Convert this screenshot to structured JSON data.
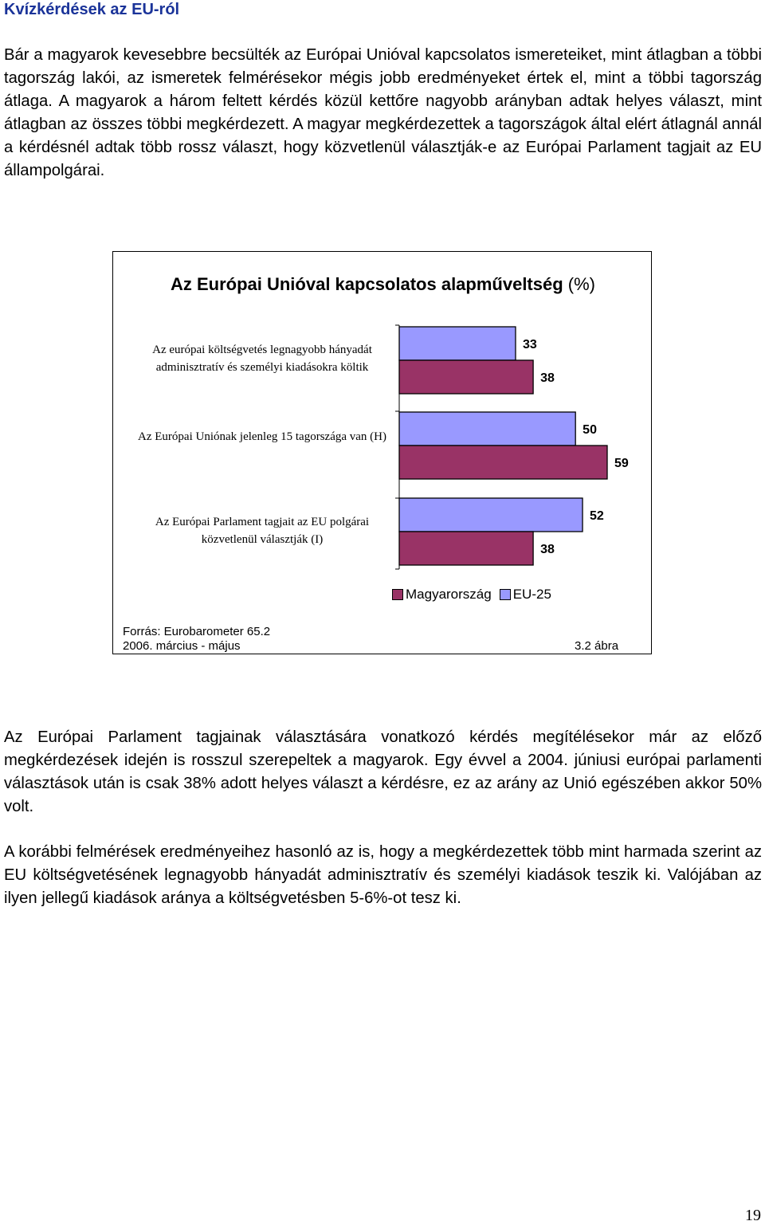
{
  "heading": "Kvízkérdések az EU-ról",
  "paragraphs": [
    "Bár a magyarok kevesebbre becsülték az Európai Unióval kapcsolatos ismereteiket, mint átlagban a többi tagország lakói, az ismeretek felmérésekor mégis jobb eredményeket értek el, mint a többi tagország átlaga. A magyarok a három feltett kérdés közül kettőre nagyobb arányban adtak helyes választ, mint átlagban az összes többi megkérdezett. A magyar megkérdezettek a tagországok által elért átlagnál annál a kérdésnél adtak több rossz választ, hogy közvetlenül választják-e az Európai Parlament tagjait az EU állampolgárai.",
    "Az Európai Parlament tagjainak választására vonatkozó kérdés megítélésekor már az előző megkérdezések idején is rosszul szerepeltek a magyarok. Egy évvel a 2004. júniusi európai parlamenti választások után is csak 38% adott helyes választ a kérdésre, ez az arány az Unió egészében akkor 50% volt.",
    "A korábbi felmérések eredményeihez hasonló az is, hogy a megkérdezettek több mint harmada szerint az EU költségvetésének legnagyobb hányadát adminisztratív és személyi kiadások teszik ki. Valójában az ilyen jellegű kiadások aránya a költségvetésben 5-6%-ot tesz ki."
  ],
  "chart_data": {
    "type": "bar",
    "orientation": "horizontal",
    "title_bold": "Az Európai Unióval kapcsolatos alapműveltség",
    "title_unit": "(%)",
    "categories": [
      "Az európai költségvetés legnagyobb hányadát adminisztratív és személyi kiadásokra költik",
      "Az Európai Uniónak jelenleg 15 tagországa van (H)",
      "Az Európai Parlament tagjait az EU polgárai közvetlenül választják (I)"
    ],
    "series": [
      {
        "name": "EU-25",
        "values": [
          33,
          50,
          52
        ],
        "color": "#9999ff"
      },
      {
        "name": "Magyarország",
        "values": [
          38,
          59,
          38
        ],
        "color": "#993366"
      }
    ],
    "legend": [
      "Magyarország",
      "EU-25"
    ],
    "legend_placement": "bottom",
    "xlim": [
      0,
      59
    ],
    "grid": false,
    "source_line1": "Forrás: Eurobarometer 65.2",
    "source_line2": "2006. március - május",
    "figure_label": "3.2 ábra"
  },
  "page_number": "19"
}
